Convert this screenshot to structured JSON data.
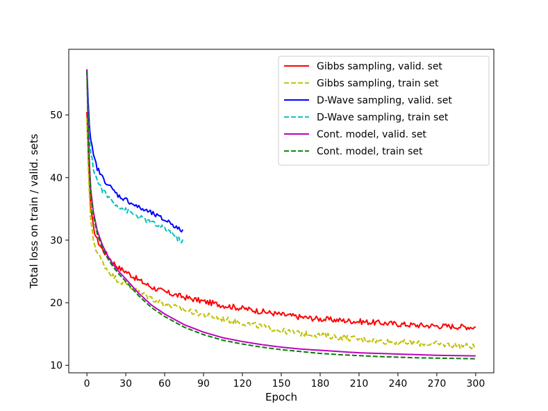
{
  "chart_data": {
    "type": "line",
    "title": "",
    "xlabel": "Epoch",
    "ylabel": "Total loss on train / valid. sets",
    "xlim": [
      -14,
      314
    ],
    "ylim": [
      8.8,
      60.5
    ],
    "xticks": [
      0,
      30,
      60,
      90,
      120,
      150,
      180,
      210,
      240,
      270,
      300
    ],
    "yticks": [
      10,
      20,
      30,
      40,
      50
    ],
    "grid": false,
    "legend_position": "top-right",
    "series": [
      {
        "name": "Gibbs sampling, valid. set",
        "color": "#ff0000",
        "dash": "solid",
        "noise": 0.45,
        "x": [
          0,
          1,
          2,
          3,
          5,
          8,
          12,
          16,
          20,
          25,
          30,
          40,
          50,
          60,
          75,
          90,
          105,
          120,
          135,
          150,
          165,
          180,
          195,
          210,
          225,
          240,
          255,
          270,
          285,
          300
        ],
        "y": [
          50.5,
          44,
          39,
          35,
          32,
          30,
          28.5,
          27.5,
          26.5,
          25.5,
          25,
          23.6,
          22.5,
          21.7,
          20.9,
          20.2,
          19.6,
          19.1,
          18.6,
          18.1,
          17.7,
          17.4,
          17.2,
          17.0,
          16.8,
          16.6,
          16.4,
          16.3,
          16.2,
          16.1
        ]
      },
      {
        "name": "Gibbs sampling, train set",
        "color": "#bfbf00",
        "dash": "dashed",
        "noise": 0.45,
        "x": [
          0,
          1,
          2,
          3,
          5,
          8,
          12,
          16,
          20,
          25,
          30,
          40,
          50,
          60,
          75,
          90,
          105,
          120,
          135,
          150,
          165,
          180,
          195,
          210,
          225,
          240,
          255,
          270,
          285,
          300
        ],
        "y": [
          49.5,
          42,
          37,
          33,
          30,
          28,
          26.5,
          25.2,
          24.3,
          23.5,
          23,
          21.7,
          20.7,
          19.8,
          18.9,
          18.1,
          17.4,
          16.8,
          16.2,
          15.5,
          15.1,
          14.8,
          14.5,
          14.2,
          13.9,
          13.7,
          13.5,
          13.4,
          13.2,
          13.0
        ]
      },
      {
        "name": "D-Wave sampling, valid. set",
        "color": "#0000ff",
        "dash": "solid",
        "noise": 0.4,
        "x": [
          0,
          1,
          2,
          3,
          5,
          8,
          12,
          16,
          20,
          25,
          30,
          40,
          50,
          60,
          65,
          70,
          74
        ],
        "y": [
          57.3,
          52,
          48,
          46,
          43.5,
          41.5,
          40,
          39,
          38,
          37,
          36.5,
          35.2,
          34.3,
          33.2,
          32.8,
          31.8,
          31.5
        ]
      },
      {
        "name": "D-Wave sampling, train set",
        "color": "#00bfbf",
        "dash": "dashed",
        "noise": 0.4,
        "x": [
          0,
          1,
          2,
          3,
          5,
          8,
          12,
          16,
          20,
          25,
          30,
          40,
          50,
          60,
          65,
          70,
          74
        ],
        "y": [
          56.8,
          50,
          46,
          44,
          41.5,
          39.5,
          38,
          37,
          36.2,
          35.3,
          34.8,
          33.7,
          32.8,
          31.8,
          31.3,
          30.2,
          29.8
        ]
      },
      {
        "name": "Cont. model, valid. set",
        "color": "#bf00bf",
        "dash": "solid",
        "noise": 0,
        "x": [
          0,
          1,
          2,
          3,
          5,
          8,
          12,
          16,
          20,
          25,
          30,
          40,
          50,
          60,
          75,
          90,
          105,
          120,
          135,
          150,
          165,
          180,
          195,
          210,
          225,
          240,
          255,
          270,
          285,
          300
        ],
        "y": [
          57.3,
          48,
          42,
          38,
          34.5,
          31.5,
          29.2,
          27.5,
          26.2,
          24.9,
          23.8,
          21.5,
          19.6,
          18.2,
          16.5,
          15.3,
          14.4,
          13.8,
          13.3,
          12.9,
          12.6,
          12.4,
          12.2,
          12.0,
          11.9,
          11.8,
          11.7,
          11.6,
          11.55,
          11.5
        ]
      },
      {
        "name": "Cont. model, train set",
        "color": "#007f00",
        "dash": "dashed",
        "noise": 0,
        "x": [
          0,
          1,
          2,
          3,
          5,
          8,
          12,
          16,
          20,
          25,
          30,
          40,
          50,
          60,
          75,
          90,
          105,
          120,
          135,
          150,
          165,
          180,
          195,
          210,
          225,
          240,
          255,
          270,
          285,
          300
        ],
        "y": [
          57.0,
          47.5,
          41.5,
          37.5,
          34,
          31,
          28.8,
          27.1,
          25.8,
          24.5,
          23.4,
          21.1,
          19.2,
          17.8,
          16.1,
          14.9,
          14.0,
          13.4,
          12.9,
          12.5,
          12.2,
          11.9,
          11.7,
          11.55,
          11.4,
          11.3,
          11.2,
          11.15,
          11.1,
          11.05
        ]
      }
    ]
  }
}
